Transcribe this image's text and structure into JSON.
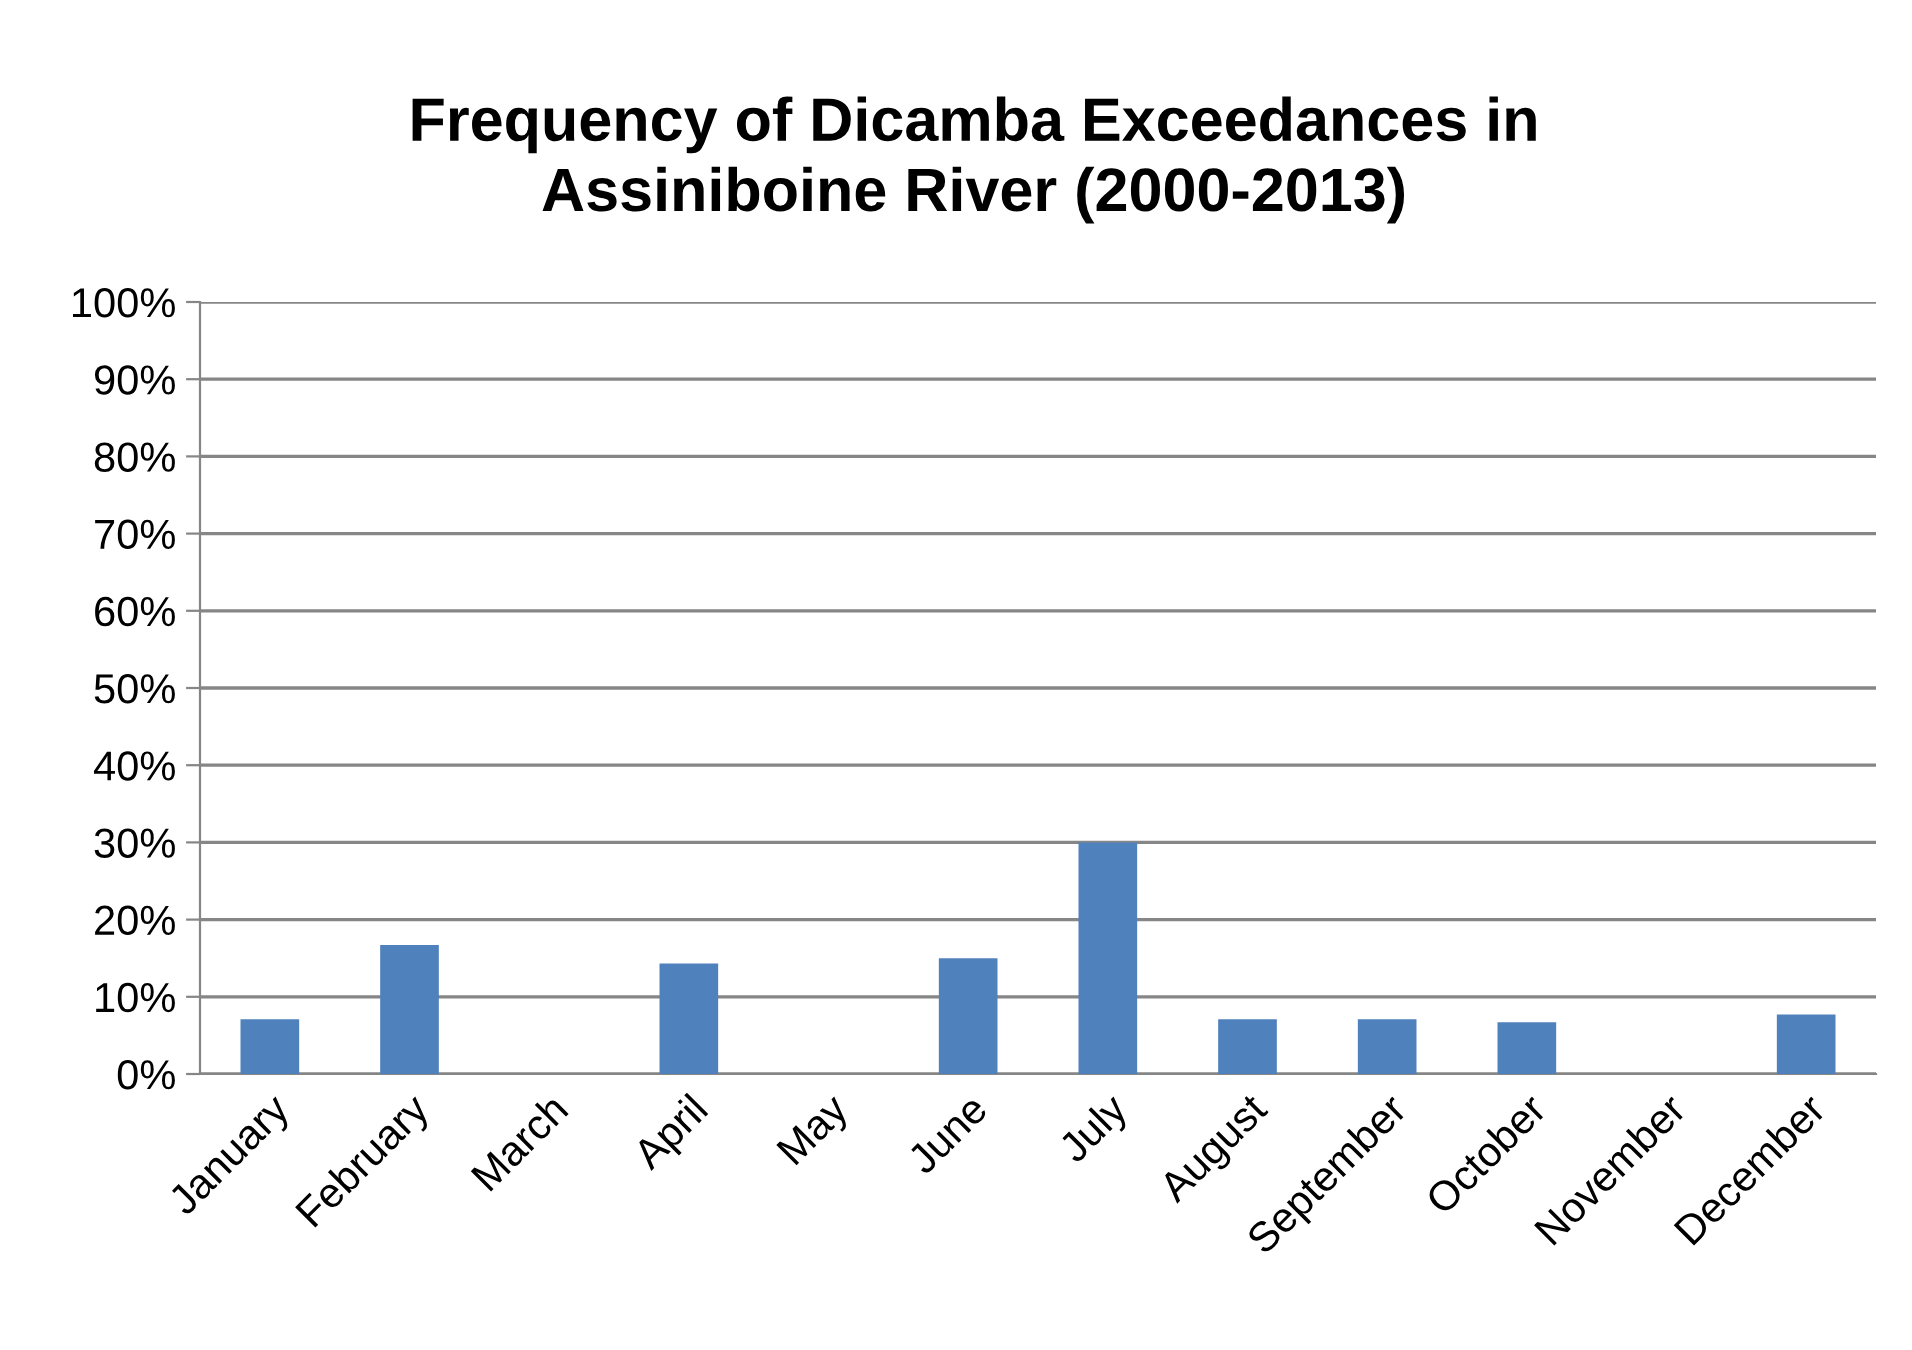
{
  "chart_data": {
    "type": "bar",
    "title": "Frequency of Dicamba Exceedances in\nAssiniboine River (2000-2013)",
    "categories": [
      "January",
      "February",
      "March",
      "April",
      "May",
      "June",
      "July",
      "August",
      "September",
      "October",
      "November",
      "December"
    ],
    "values": [
      7.1,
      16.7,
      0,
      14.3,
      0,
      15,
      30,
      7.1,
      7.1,
      6.7,
      0,
      7.7
    ],
    "color": "#4f81bd",
    "ylim": [
      0,
      100
    ],
    "yticks": [
      {
        "value": 0,
        "label": "0%"
      },
      {
        "value": 10,
        "label": "10%"
      },
      {
        "value": 20,
        "label": "20%"
      },
      {
        "value": 30,
        "label": "30%"
      },
      {
        "value": 40,
        "label": "40%"
      },
      {
        "value": 50,
        "label": "50%"
      },
      {
        "value": 60,
        "label": "60%"
      },
      {
        "value": 70,
        "label": "70%"
      },
      {
        "value": 80,
        "label": "80%"
      },
      {
        "value": 90,
        "label": "90%"
      },
      {
        "value": 100,
        "label": "100%"
      }
    ],
    "grid": "y"
  }
}
